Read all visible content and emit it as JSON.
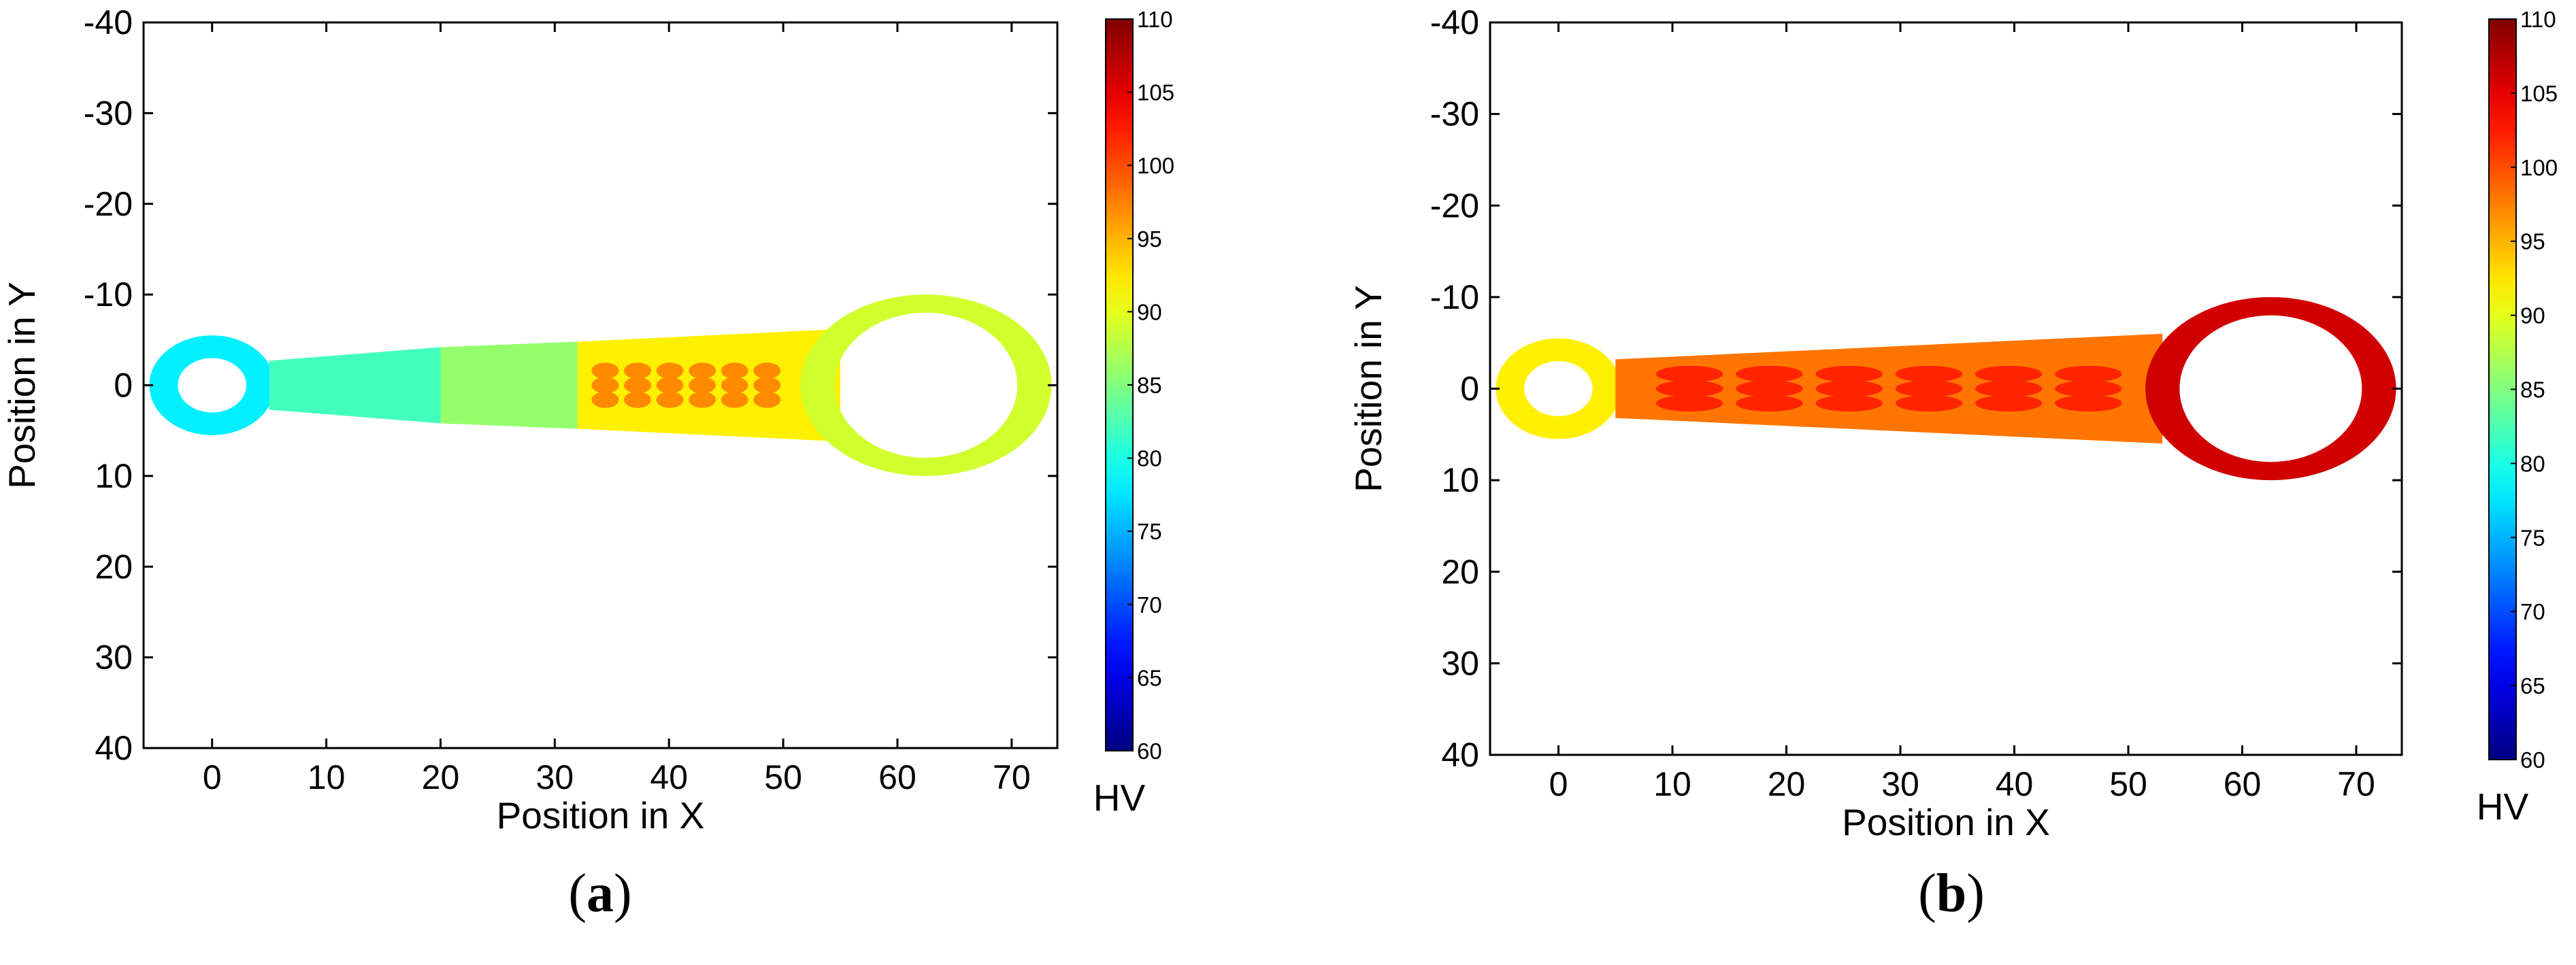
{
  "chart_data": [
    {
      "type": "heatmap",
      "panel_label": "a",
      "xlabel": "Position in X",
      "ylabel": "Position in Y",
      "xlim": [
        -6,
        74
      ],
      "ylim": [
        -40,
        40
      ],
      "y_axis_inverted": true,
      "xticks": [
        "0",
        "10",
        "20",
        "30",
        "40",
        "50",
        "60",
        "70"
      ],
      "yticks": [
        "-40",
        "-30",
        "-20",
        "-10",
        "0",
        "10",
        "20",
        "30",
        "40"
      ],
      "grid": false,
      "colorbar": {
        "label": "HV",
        "min": 60,
        "max": 110,
        "ticks": [
          "110",
          "105",
          "100",
          "95",
          "90",
          "85",
          "80",
          "75",
          "70",
          "65",
          "60"
        ],
        "colormap": "jet"
      },
      "regions": [
        {
          "name": "small-eye-ring",
          "center_x": 0,
          "center_y": 0,
          "outer_radius": 5.5,
          "inner_radius": 3,
          "hv": 78
        },
        {
          "name": "shank-near-small-end",
          "x_from": 5,
          "x_to": 20,
          "half_width_from": 2.7,
          "half_width_to": 4.2,
          "hv": 82
        },
        {
          "name": "shank-middle",
          "x_from": 20,
          "x_to": 32,
          "half_width_from": 4.2,
          "half_width_to": 4.8,
          "hv": 86
        },
        {
          "name": "shank-near-big-end",
          "x_from": 32,
          "x_to": 55,
          "half_width_from": 4.8,
          "half_width_to": 6.2,
          "hv": 92
        },
        {
          "name": "shank-core-hot-spots",
          "x_from": 33,
          "x_to": 50,
          "hv": 97
        },
        {
          "name": "big-eye-ring",
          "center_x": 62.5,
          "center_y": 0,
          "outer_radius_x": 11,
          "outer_radius_y": 10,
          "inner_radius_x": 8,
          "inner_radius_y": 8,
          "hv": 89
        }
      ]
    },
    {
      "type": "heatmap",
      "panel_label": "b",
      "xlabel": "Position in X",
      "ylabel": "Position in Y",
      "xlim": [
        -6,
        74
      ],
      "ylim": [
        -40,
        40
      ],
      "y_axis_inverted": true,
      "xticks": [
        "0",
        "10",
        "20",
        "30",
        "40",
        "50",
        "60",
        "70"
      ],
      "yticks": [
        "-40",
        "-30",
        "-20",
        "-10",
        "0",
        "10",
        "20",
        "30",
        "40"
      ],
      "grid": false,
      "colorbar": {
        "label": "HV",
        "min": 60,
        "max": 110,
        "ticks": [
          "110",
          "105",
          "100",
          "95",
          "90",
          "85",
          "80",
          "75",
          "70",
          "65",
          "60"
        ],
        "colormap": "jet"
      },
      "regions": [
        {
          "name": "small-eye-ring",
          "center_x": 0,
          "center_y": 0,
          "outer_radius": 5.5,
          "inner_radius": 3,
          "hv": 92
        },
        {
          "name": "shank",
          "x_from": 5,
          "x_to": 53,
          "half_width_from": 3.2,
          "half_width_to": 6.0,
          "hv": 98
        },
        {
          "name": "shank-core",
          "x_from": 8,
          "x_to": 50,
          "hv": 102
        },
        {
          "name": "big-eye-ring",
          "center_x": 62.5,
          "center_y": 0,
          "outer_radius_x": 11,
          "outer_radius_y": 10,
          "inner_radius_x": 8,
          "inner_radius_y": 8,
          "hv": 106
        }
      ]
    }
  ]
}
